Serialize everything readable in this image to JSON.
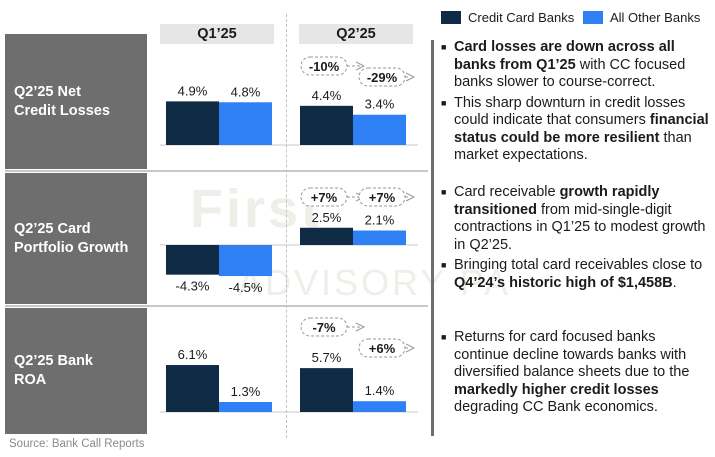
{
  "legend": [
    {
      "label": "Credit Card Banks",
      "color": "#0f2b45"
    },
    {
      "label": "All Other Banks",
      "color": "#2f7ff5"
    }
  ],
  "quarter_headers": [
    "Q1’25",
    "Q2’25"
  ],
  "source": "Source: Bank Call Reports",
  "watermark": {
    "line1": "First",
    "line2": "ADVISORY PA"
  },
  "chart_data": [
    {
      "type": "bar",
      "title": "Q2’25 Net Credit Losses",
      "categories": [
        "Q1’25",
        "Q2’25"
      ],
      "series": [
        {
          "name": "Credit Card Banks",
          "values": [
            4.9,
            4.4
          ],
          "labels": [
            "4.9%",
            "4.4%"
          ]
        },
        {
          "name": "All Other Banks",
          "values": [
            4.8,
            3.4
          ],
          "labels": [
            "4.8%",
            "3.4%"
          ]
        }
      ],
      "changes": [
        "-10%",
        "-29%"
      ],
      "bullets": [
        [
          {
            "t": "Card losses are down across all banks from Q1’25",
            "b": true
          },
          {
            "t": " with CC focused banks slower to course-correct.",
            "b": false
          }
        ],
        [
          {
            "t": "This sharp downturn in credit losses could indicate that consumers ",
            "b": false
          },
          {
            "t": "financial status could be more resilient",
            "b": true
          },
          {
            "t": " than market expectations.",
            "b": false
          }
        ]
      ]
    },
    {
      "type": "bar",
      "title": "Q2’25 Card Portfolio Growth",
      "categories": [
        "Q1’25",
        "Q2’25"
      ],
      "series": [
        {
          "name": "Credit Card Banks",
          "values": [
            -4.3,
            2.5
          ],
          "labels": [
            "-4.3%",
            "2.5%"
          ]
        },
        {
          "name": "All Other Banks",
          "values": [
            -4.5,
            2.1
          ],
          "labels": [
            "-4.5%",
            "2.1%"
          ]
        }
      ],
      "changes": [
        "+7%",
        "+7%"
      ],
      "bullets": [
        [
          {
            "t": "Card receivable ",
            "b": false
          },
          {
            "t": "growth rapidly transitioned",
            "b": true
          },
          {
            "t": " from mid-single-digit contractions in Q1’25 to modest growth in Q2’25.",
            "b": false
          }
        ],
        [
          {
            "t": "Bringing total card receivables close to ",
            "b": false
          },
          {
            "t": "Q4’24’s historic high of $1,458B",
            "b": true
          },
          {
            "t": ".",
            "b": false
          }
        ]
      ]
    },
    {
      "type": "bar",
      "title": "Q2’25 Bank ROA",
      "categories": [
        "Q1’25",
        "Q2’25"
      ],
      "series": [
        {
          "name": "Credit Card Banks",
          "values": [
            6.1,
            5.7
          ],
          "labels": [
            "6.1%",
            "5.7%"
          ]
        },
        {
          "name": "All Other Banks",
          "values": [
            1.3,
            1.4
          ],
          "labels": [
            "1.3%",
            "1.4%"
          ]
        }
      ],
      "changes": [
        "-7%",
        "+6%"
      ],
      "bullets": [
        [
          {
            "t": "Returns for card focused banks continue decline towards banks with diversified balance sheets due to the ",
            "b": false
          },
          {
            "t": "markedly higher credit losses",
            "b": true
          },
          {
            "t": " degrading CC Bank economics.",
            "b": false
          }
        ]
      ]
    }
  ]
}
